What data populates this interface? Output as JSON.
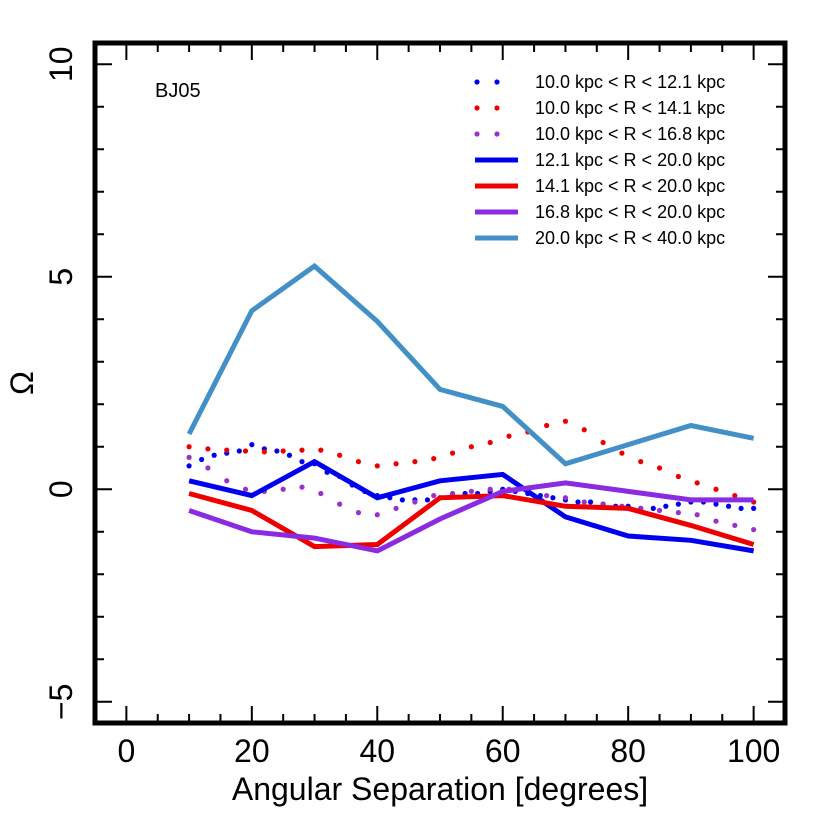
{
  "chart_data": {
    "type": "line",
    "panel_label": "BJ05",
    "xlabel": "Angular Separation  [degrees]",
    "ylabel": "Ω",
    "xlim": [
      -5,
      105
    ],
    "ylim": [
      -5.5,
      10.5
    ],
    "x_ticks": [
      0,
      20,
      40,
      60,
      80,
      100
    ],
    "y_ticks": [
      -5,
      0,
      5,
      10
    ],
    "legend_position": "top-right",
    "series": [
      {
        "name": "10.0 kpc < R < 12.1 kpc",
        "style": "dotted",
        "color": "#0000ee",
        "x": [
          10,
          12,
          14,
          16,
          18,
          20,
          22,
          24,
          26,
          28,
          30,
          32,
          34,
          36,
          38,
          40,
          42,
          44,
          46,
          48,
          50,
          52,
          54,
          56,
          58,
          60,
          62,
          64,
          66,
          68,
          70,
          72,
          74,
          76,
          78,
          80,
          82,
          84,
          86,
          88,
          90,
          92,
          94,
          96,
          98,
          100
        ],
        "y": [
          0.55,
          0.7,
          0.8,
          0.85,
          0.9,
          1.05,
          0.95,
          0.9,
          0.8,
          0.65,
          0.6,
          0.4,
          0.3,
          0.1,
          -0.05,
          -0.15,
          -0.2,
          -0.25,
          -0.25,
          -0.25,
          -0.2,
          -0.15,
          -0.1,
          -0.1,
          -0.05,
          0,
          -0.05,
          -0.1,
          -0.15,
          -0.2,
          -0.25,
          -0.3,
          -0.3,
          -0.35,
          -0.4,
          -0.4,
          -0.45,
          -0.45,
          -0.4,
          -0.35,
          -0.3,
          -0.3,
          -0.35,
          -0.4,
          -0.45,
          -0.45
        ]
      },
      {
        "name": "10.0 kpc < R < 14.1 kpc",
        "style": "dotted",
        "color": "#ee0000",
        "x": [
          10,
          13,
          16,
          19,
          22,
          25,
          28,
          31,
          34,
          37,
          40,
          43,
          46,
          49,
          52,
          55,
          58,
          61,
          64,
          67,
          70,
          73,
          76,
          79,
          82,
          85,
          88,
          91,
          94,
          97,
          100
        ],
        "y": [
          1.0,
          0.95,
          0.92,
          0.9,
          0.88,
          0.9,
          0.92,
          0.92,
          0.8,
          0.65,
          0.55,
          0.6,
          0.65,
          0.72,
          0.85,
          1.0,
          1.1,
          1.25,
          1.35,
          1.5,
          1.6,
          1.4,
          1.1,
          0.85,
          0.65,
          0.5,
          0.3,
          0.15,
          0.0,
          -0.15,
          -0.3
        ]
      },
      {
        "name": "10.0 kpc < R < 16.8 kpc",
        "style": "dotted",
        "color": "#9932cc",
        "x": [
          10,
          13,
          16,
          19,
          22,
          25,
          28,
          31,
          34,
          37,
          40,
          43,
          46,
          49,
          52,
          55,
          58,
          61,
          64,
          67,
          70,
          73,
          76,
          79,
          82,
          85,
          88,
          91,
          94,
          97,
          100
        ],
        "y": [
          0.75,
          0.5,
          0.2,
          0.0,
          -0.05,
          0.0,
          0.05,
          -0.1,
          -0.35,
          -0.55,
          -0.6,
          -0.45,
          -0.3,
          -0.15,
          -0.1,
          -0.05,
          0.0,
          0.0,
          -0.05,
          -0.15,
          -0.2,
          -0.3,
          -0.35,
          -0.4,
          -0.45,
          -0.5,
          -0.55,
          -0.6,
          -0.75,
          -0.85,
          -0.95
        ]
      },
      {
        "name": "12.1 kpc < R < 20.0 kpc",
        "style": "solid",
        "color": "#0000ee",
        "x": [
          10,
          20,
          30,
          40,
          50,
          60,
          70,
          80,
          90,
          100
        ],
        "y": [
          0.2,
          -0.15,
          0.65,
          -0.2,
          0.2,
          0.35,
          -0.65,
          -1.1,
          -1.2,
          -1.45
        ]
      },
      {
        "name": "14.1 kpc < R < 20.0 kpc",
        "style": "solid",
        "color": "#ee0000",
        "x": [
          10,
          20,
          30,
          40,
          50,
          60,
          70,
          80,
          90,
          100
        ],
        "y": [
          -0.1,
          -0.5,
          -1.35,
          -1.3,
          -0.2,
          -0.15,
          -0.4,
          -0.45,
          -0.85,
          -1.3
        ]
      },
      {
        "name": "16.8 kpc < R < 20.0 kpc",
        "style": "solid",
        "color": "#8a2be2",
        "x": [
          10,
          20,
          30,
          40,
          50,
          60,
          70,
          80,
          90,
          100
        ],
        "y": [
          -0.5,
          -1.0,
          -1.15,
          -1.45,
          -0.7,
          -0.05,
          0.15,
          -0.05,
          -0.25,
          -0.25
        ]
      },
      {
        "name": "20.0 kpc < R < 40.0 kpc",
        "style": "solid",
        "color": "#4390c8",
        "x": [
          10,
          20,
          30,
          40,
          50,
          60,
          70,
          80,
          90,
          100
        ],
        "y": [
          1.3,
          4.2,
          5.25,
          3.95,
          2.35,
          1.95,
          0.6,
          1.05,
          1.5,
          1.2
        ]
      }
    ]
  }
}
